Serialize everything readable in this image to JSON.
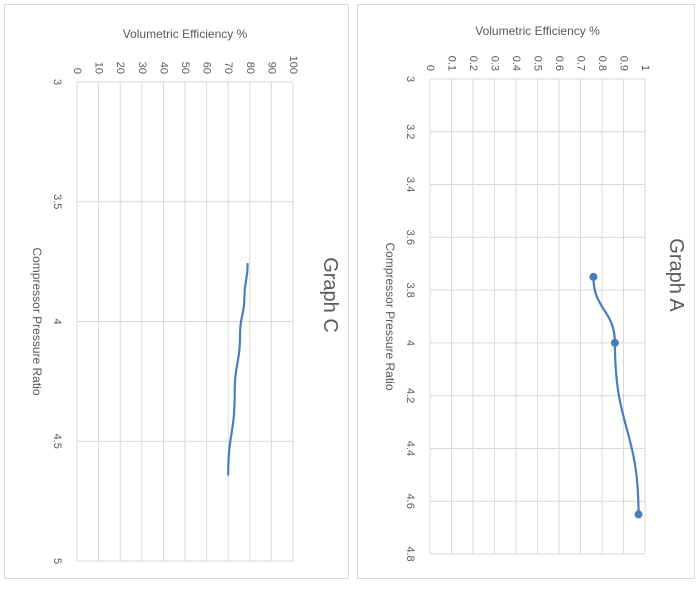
{
  "chart_data": [
    {
      "type": "line",
      "title": "Graph C",
      "xlabel": "Compressor Pressure Ratio",
      "ylabel": "Volumetric Efficiency %",
      "xlim": [
        3,
        5
      ],
      "ylim": [
        0,
        100
      ],
      "x_ticks": [
        "3",
        "3.5",
        "4",
        "4.5",
        "5"
      ],
      "y_ticks": [
        "0",
        "10",
        "20",
        "30",
        "40",
        "50",
        "60",
        "70",
        "80",
        "90",
        "100"
      ],
      "grid": true,
      "markers": false,
      "series": [
        {
          "x": [
            3.76,
            3.9,
            4.05,
            4.3,
            4.64
          ],
          "y": [
            79,
            77.5,
            75.5,
            73,
            70
          ]
        }
      ],
      "line_color": "#4a7ebb"
    },
    {
      "type": "line",
      "title": "Graph A",
      "xlabel": "Compressor Pressure Ratio",
      "ylabel": "Volumetric Efficiency %",
      "xlim": [
        3,
        4.8
      ],
      "ylim": [
        0,
        1
      ],
      "x_ticks": [
        "3",
        "3.2",
        "3.4",
        "3.6",
        "3.8",
        "4",
        "4.2",
        "4.4",
        "4.6",
        "4.8"
      ],
      "y_ticks": [
        "0",
        "0.1",
        "0.2",
        "0.3",
        "0.4",
        "0.5",
        "0.6",
        "0.7",
        "0.8",
        "0.9",
        "1"
      ],
      "grid": true,
      "markers": true,
      "series": [
        {
          "x": [
            3.75,
            4.0,
            4.65
          ],
          "y": [
            0.76,
            0.86,
            0.97
          ]
        }
      ],
      "line_color": "#4a7ebb"
    }
  ]
}
